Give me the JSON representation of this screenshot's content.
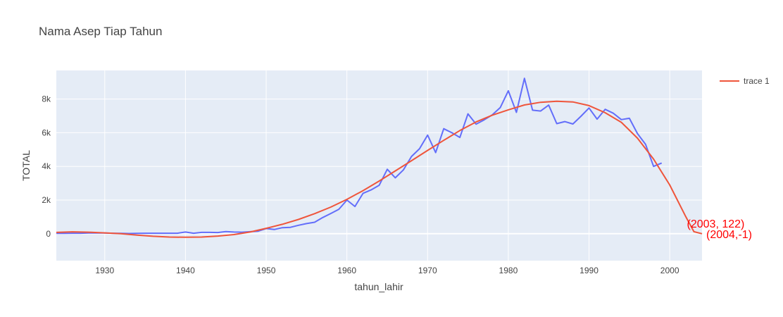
{
  "chart_data": {
    "type": "line",
    "title": "Nama Asep Tiap Tahun",
    "xlabel": "tahun_lahir",
    "ylabel": "TOTAL",
    "xlim": [
      1924,
      2004
    ],
    "ylim": [
      -1600,
      9700
    ],
    "x_ticks": [
      1930,
      1940,
      1950,
      1960,
      1970,
      1980,
      1990,
      2000
    ],
    "y_ticks": [
      0,
      2000,
      4000,
      6000,
      8000
    ],
    "y_tick_labels": [
      "0",
      "2k",
      "4k",
      "6k",
      "8k"
    ],
    "grid": true,
    "legend_position": "top-right",
    "colors": {
      "plot_bg": "#e5ecf6",
      "data_line": "#636efa",
      "trend_line": "#ef553b",
      "annotation": "#ff0000"
    },
    "series": [
      {
        "name": "",
        "role": "data",
        "x": [
          1924,
          1925,
          1926,
          1927,
          1928,
          1929,
          1930,
          1931,
          1932,
          1933,
          1934,
          1935,
          1936,
          1937,
          1938,
          1939,
          1940,
          1941,
          1942,
          1943,
          1944,
          1945,
          1946,
          1947,
          1948,
          1949,
          1950,
          1951,
          1952,
          1953,
          1954,
          1955,
          1956,
          1957,
          1958,
          1959,
          1960,
          1961,
          1962,
          1963,
          1964,
          1965,
          1966,
          1967,
          1968,
          1969,
          1970,
          1971,
          1972,
          1973,
          1974,
          1975,
          1976,
          1977,
          1978,
          1979,
          1980,
          1981,
          1982,
          1983,
          1984,
          1985,
          1986,
          1987,
          1988,
          1989,
          1990,
          1991,
          1992,
          1993,
          1994,
          1995,
          1996,
          1997,
          1998,
          1999
        ],
        "y": [
          20,
          20,
          30,
          30,
          40,
          40,
          40,
          30,
          20,
          10,
          20,
          30,
          30,
          30,
          30,
          30,
          100,
          30,
          80,
          80,
          70,
          130,
          100,
          90,
          120,
          150,
          310,
          250,
          360,
          380,
          500,
          600,
          680,
          960,
          1200,
          1450,
          2000,
          1620,
          2400,
          2600,
          2880,
          3830,
          3320,
          3790,
          4590,
          5050,
          5860,
          4820,
          6240,
          6000,
          5720,
          7120,
          6510,
          6760,
          7060,
          7490,
          8490,
          7210,
          9230,
          7340,
          7290,
          7640,
          6540,
          6660,
          6520,
          6980,
          7470,
          6810,
          7390,
          7160,
          6780,
          6860,
          5950,
          5310,
          4000,
          4200
        ]
      },
      {
        "name": "trace 1",
        "role": "trend",
        "x": [
          1924,
          1926,
          1928,
          1930,
          1932,
          1934,
          1936,
          1938,
          1940,
          1942,
          1944,
          1946,
          1948,
          1950,
          1952,
          1954,
          1956,
          1958,
          1960,
          1962,
          1964,
          1966,
          1968,
          1970,
          1972,
          1974,
          1976,
          1978,
          1980,
          1982,
          1984,
          1986,
          1988,
          1990,
          1992,
          1994,
          1996,
          1998,
          2000,
          2002,
          2003,
          2004
        ],
        "y": [
          80,
          110,
          90,
          50,
          0,
          -80,
          -150,
          -200,
          -210,
          -200,
          -140,
          -50,
          100,
          320,
          560,
          850,
          1190,
          1580,
          2040,
          2560,
          3130,
          3730,
          4340,
          4950,
          5550,
          6130,
          6640,
          7040,
          7360,
          7650,
          7810,
          7870,
          7830,
          7610,
          7190,
          6620,
          5680,
          4430,
          2900,
          1000,
          122,
          -1
        ]
      }
    ],
    "annotations": [
      {
        "text": "(2003, 122)",
        "x": 2003,
        "y": 122
      },
      {
        "text": "(2004,-1)",
        "x": 2004,
        "y": -1
      }
    ]
  }
}
